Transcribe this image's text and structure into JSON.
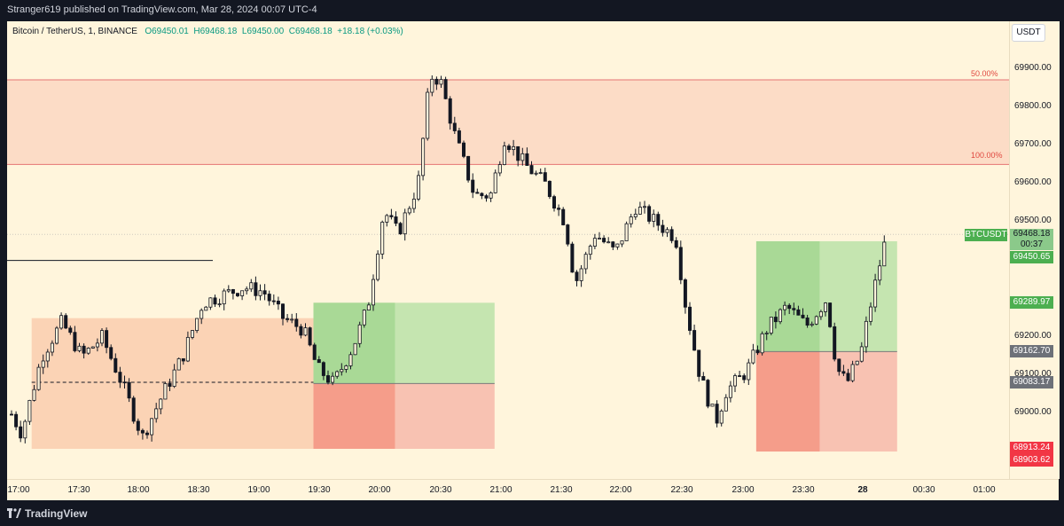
{
  "header": {
    "published": "Stranger619 published on TradingView.com, Mar 28, 2024 00:07 UTC-4"
  },
  "legend": {
    "symbol": "Bitcoin / TetherUS, 1, BINANCE",
    "o_label": "O",
    "o": "69450.01",
    "h_label": "H",
    "h": "69468.18",
    "l_label": "L",
    "l": "69450.00",
    "c_label": "C",
    "c": "69468.18",
    "change": "+18.18 (+0.03%)"
  },
  "currency_button": "USDT",
  "fib_labels": {
    "top": "50.00%",
    "bottom": "100.00%"
  },
  "price_labels": [
    "69900.00",
    "69800.00",
    "69700.00",
    "69600.00",
    "69500.00",
    "69200.00",
    "69100.00",
    "69000.00"
  ],
  "price_tags": {
    "symbol": "BTCUSDT",
    "current": "69468.18",
    "countdown": "00:37",
    "t1": "69450.65",
    "t2": "69289.97",
    "t3": "69162.70",
    "t4": "69083.17",
    "t5": "68913.24",
    "t6": "68903.62"
  },
  "time_labels": [
    "17:00",
    "17:30",
    "18:00",
    "18:30",
    "19:00",
    "19:30",
    "20:00",
    "20:30",
    "21:00",
    "21:30",
    "22:00",
    "22:30",
    "23:00",
    "23:30",
    "28",
    "00:30",
    "01:00"
  ],
  "footer": {
    "brand": "TradingView"
  },
  "colors": {
    "bg": "#fff5dc",
    "up": "#131722",
    "down": "#131722",
    "supply": "#f8c8b4",
    "profit": "#8ed27c",
    "loss": "#f47563"
  },
  "chart_data": {
    "type": "candlestick",
    "symbol": "Bitcoin / TetherUS",
    "interval": "1",
    "exchange": "BINANCE",
    "ylim": [
      68860,
      69990
    ],
    "x_ticks": [
      "17:00",
      "17:30",
      "18:00",
      "18:30",
      "19:00",
      "19:30",
      "20:00",
      "20:30",
      "21:00",
      "21:30",
      "22:00",
      "22:30",
      "23:00",
      "23:30",
      "28",
      "00:30",
      "01:00"
    ],
    "price_path": [
      [
        "17:00",
        69000
      ],
      [
        "17:05",
        68950
      ],
      [
        "17:15",
        69150
      ],
      [
        "17:25",
        69240
      ],
      [
        "17:35",
        69150
      ],
      [
        "17:45",
        69200
      ],
      [
        "17:55",
        69080
      ],
      [
        "18:05",
        68940
      ],
      [
        "18:15",
        69050
      ],
      [
        "18:25",
        69150
      ],
      [
        "18:35",
        69290
      ],
      [
        "18:45",
        69310
      ],
      [
        "18:55",
        69330
      ],
      [
        "19:05",
        69320
      ],
      [
        "19:15",
        69250
      ],
      [
        "19:25",
        69220
      ],
      [
        "19:32",
        69120
      ],
      [
        "19:40",
        69080
      ],
      [
        "19:50",
        69180
      ],
      [
        "19:57",
        69280
      ],
      [
        "20:05",
        69530
      ],
      [
        "20:12",
        69470
      ],
      [
        "20:22",
        69600
      ],
      [
        "20:28",
        69880
      ],
      [
        "20:33",
        69870
      ],
      [
        "20:40",
        69730
      ],
      [
        "20:50",
        69570
      ],
      [
        "20:58",
        69570
      ],
      [
        "21:05",
        69720
      ],
      [
        "21:15",
        69650
      ],
      [
        "21:25",
        69600
      ],
      [
        "21:35",
        69500
      ],
      [
        "21:40",
        69340
      ],
      [
        "21:50",
        69470
      ],
      [
        "22:00",
        69420
      ],
      [
        "22:10",
        69540
      ],
      [
        "22:20",
        69500
      ],
      [
        "22:30",
        69460
      ],
      [
        "22:35",
        69280
      ],
      [
        "22:42",
        69100
      ],
      [
        "22:50",
        68980
      ],
      [
        "22:55",
        69060
      ],
      [
        "23:05",
        69110
      ],
      [
        "23:15",
        69220
      ],
      [
        "23:25",
        69280
      ],
      [
        "23:35",
        69230
      ],
      [
        "23:45",
        69300
      ],
      [
        "23:50",
        69120
      ],
      [
        "23:55",
        69080
      ],
      [
        "00:02",
        69160
      ],
      [
        "00:05",
        69240
      ],
      [
        "00:10",
        69360
      ],
      [
        "00:15",
        69470
      ]
    ],
    "zones": [
      {
        "type": "fib_zone",
        "from": 69650,
        "to": 69870,
        "labels": [
          "50.00%",
          "100.00%"
        ]
      },
      {
        "type": "demand_zone",
        "x": [
          "17:10",
          "19:30"
        ],
        "from": 68910,
        "to": 69250
      },
      {
        "type": "long_position",
        "x": [
          "19:30",
          "21:00"
        ],
        "entry": 69080,
        "target": 69290,
        "stop": 68910
      },
      {
        "type": "long_position",
        "x": [
          "23:10",
          "00:20"
        ],
        "entry": 69163,
        "target": 69450,
        "stop": 68903
      }
    ],
    "horizontal_lines": [
      69400,
      69083
    ],
    "current_price": 69468.18
  }
}
